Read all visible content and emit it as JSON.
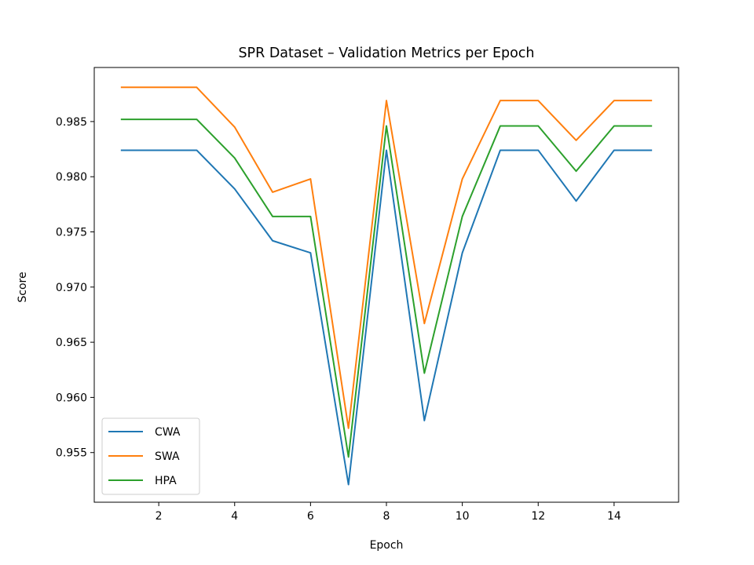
{
  "chart_data": {
    "type": "line",
    "title": "SPR Dataset – Validation Metrics per Epoch",
    "xlabel": "Epoch",
    "ylabel": "Score",
    "xlim": [
      0.3,
      15.7
    ],
    "ylim": [
      0.9505,
      0.9899
    ],
    "xticks": [
      2,
      4,
      6,
      8,
      10,
      12,
      14
    ],
    "yticks": [
      0.955,
      0.96,
      0.965,
      0.97,
      0.975,
      0.98,
      0.985
    ],
    "xtick_labels": [
      "2",
      "4",
      "6",
      "8",
      "10",
      "12",
      "14"
    ],
    "ytick_labels": [
      "0.955",
      "0.960",
      "0.965",
      "0.970",
      "0.975",
      "0.980",
      "0.985"
    ],
    "x": [
      1,
      2,
      3,
      4,
      5,
      6,
      7,
      8,
      9,
      10,
      11,
      12,
      13,
      14,
      15
    ],
    "grid": false,
    "legend_position": "lower left",
    "series": [
      {
        "name": "CWA",
        "color": "#1f77b4",
        "values": [
          0.9824,
          0.9824,
          0.9824,
          0.9789,
          0.9742,
          0.9731,
          0.9521,
          0.9824,
          0.9579,
          0.9731,
          0.9824,
          0.9824,
          0.9778,
          0.9824,
          0.9824
        ]
      },
      {
        "name": "SWA",
        "color": "#ff7f0e",
        "values": [
          0.9881,
          0.9881,
          0.9881,
          0.9845,
          0.9786,
          0.9798,
          0.9572,
          0.9869,
          0.9667,
          0.9798,
          0.9869,
          0.9869,
          0.9833,
          0.9869,
          0.9869
        ]
      },
      {
        "name": "HPA",
        "color": "#2ca02c",
        "values": [
          0.9852,
          0.9852,
          0.9852,
          0.9817,
          0.9764,
          0.9764,
          0.9546,
          0.9846,
          0.9622,
          0.9764,
          0.9846,
          0.9846,
          0.9805,
          0.9846,
          0.9846
        ]
      }
    ]
  }
}
